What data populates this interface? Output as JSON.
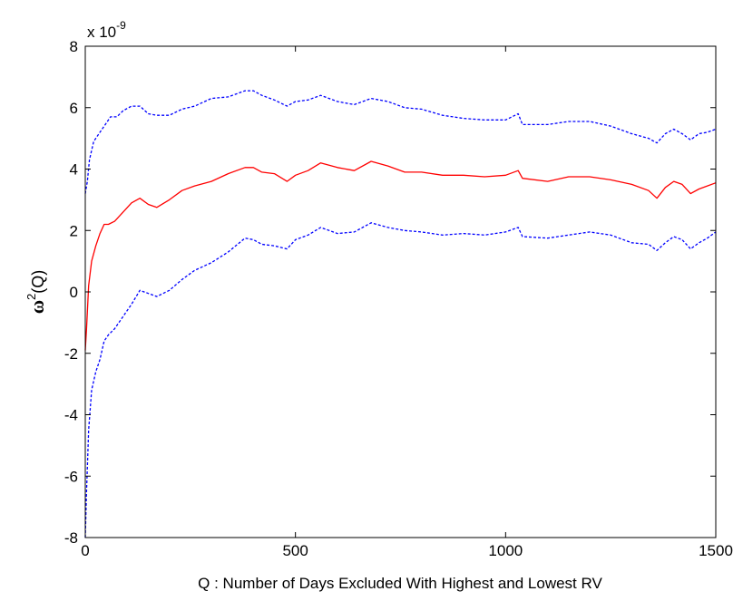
{
  "chart_data": {
    "type": "line",
    "title": "",
    "xlabel": "Q : Number of Days Excluded With Highest and Lowest RV",
    "ylabel": {
      "prefix": "ω",
      "sup": "2",
      "suffix": "(Q)"
    },
    "y_exponent": {
      "base": "x 10",
      "power": "-9"
    },
    "xlim": [
      0,
      1500
    ],
    "ylim": [
      -8,
      8
    ],
    "x_ticks": [
      0,
      500,
      1000,
      1500
    ],
    "x_tick_labels": [
      "0",
      "500",
      "1000",
      "1500"
    ],
    "y_ticks": [
      -8,
      -6,
      -4,
      -2,
      0,
      2,
      4,
      6,
      8
    ],
    "y_tick_labels": [
      "-8",
      "-6",
      "-4",
      "-2",
      "0",
      "2",
      "4",
      "6",
      "8"
    ],
    "grid": false,
    "legend": "none",
    "series": [
      {
        "color": "#0000ff",
        "style": "dashed",
        "x": [
          0,
          5,
          10,
          20,
          30,
          40,
          50,
          60,
          75,
          90,
          110,
          130,
          150,
          170,
          200,
          230,
          260,
          300,
          340,
          380,
          400,
          420,
          450,
          480,
          500,
          530,
          560,
          600,
          640,
          680,
          720,
          760,
          800,
          850,
          900,
          950,
          1000,
          1030,
          1040,
          1100,
          1150,
          1200,
          1250,
          1300,
          1340,
          1360,
          1380,
          1400,
          1420,
          1440,
          1460,
          1480,
          1500
        ],
        "values": [
          3.2,
          3.6,
          4.3,
          4.9,
          5.1,
          5.3,
          5.5,
          5.7,
          5.7,
          5.9,
          6.05,
          6.05,
          5.8,
          5.75,
          5.75,
          5.95,
          6.05,
          6.3,
          6.35,
          6.55,
          6.55,
          6.4,
          6.25,
          6.05,
          6.2,
          6.25,
          6.4,
          6.2,
          6.1,
          6.3,
          6.2,
          6.0,
          5.95,
          5.75,
          5.65,
          5.6,
          5.6,
          5.8,
          5.45,
          5.45,
          5.55,
          5.55,
          5.4,
          5.15,
          5.0,
          4.85,
          5.15,
          5.3,
          5.15,
          4.95,
          5.15,
          5.2,
          5.3
        ]
      },
      {
        "color": "#ff0000",
        "style": "solid",
        "x": [
          0,
          3,
          8,
          15,
          25,
          35,
          45,
          55,
          70,
          90,
          110,
          130,
          150,
          170,
          200,
          230,
          260,
          300,
          340,
          380,
          400,
          420,
          450,
          480,
          500,
          530,
          560,
          600,
          640,
          680,
          720,
          760,
          800,
          850,
          900,
          950,
          1000,
          1030,
          1040,
          1100,
          1150,
          1200,
          1250,
          1300,
          1340,
          1360,
          1380,
          1400,
          1420,
          1440,
          1460,
          1480,
          1500
        ],
        "values": [
          -1.9,
          -1.2,
          0.2,
          1.0,
          1.5,
          1.9,
          2.2,
          2.2,
          2.3,
          2.6,
          2.9,
          3.05,
          2.85,
          2.75,
          3.0,
          3.3,
          3.45,
          3.6,
          3.85,
          4.05,
          4.05,
          3.9,
          3.85,
          3.6,
          3.8,
          3.95,
          4.2,
          4.05,
          3.95,
          4.25,
          4.1,
          3.9,
          3.9,
          3.8,
          3.8,
          3.75,
          3.8,
          3.95,
          3.7,
          3.6,
          3.75,
          3.75,
          3.65,
          3.5,
          3.3,
          3.05,
          3.4,
          3.6,
          3.5,
          3.2,
          3.35,
          3.45,
          3.55
        ]
      },
      {
        "color": "#0000ff",
        "style": "dashed",
        "x": [
          0,
          3,
          8,
          15,
          25,
          35,
          45,
          55,
          70,
          90,
          110,
          130,
          150,
          170,
          200,
          230,
          260,
          300,
          340,
          380,
          400,
          420,
          450,
          480,
          500,
          530,
          560,
          600,
          640,
          680,
          720,
          760,
          800,
          850,
          900,
          950,
          1000,
          1030,
          1040,
          1100,
          1150,
          1200,
          1250,
          1300,
          1340,
          1360,
          1380,
          1400,
          1420,
          1440,
          1460,
          1480,
          1500
        ],
        "values": [
          -8.0,
          -6.5,
          -4.5,
          -3.2,
          -2.6,
          -2.2,
          -1.6,
          -1.4,
          -1.2,
          -0.8,
          -0.4,
          0.05,
          -0.05,
          -0.15,
          0.05,
          0.4,
          0.7,
          0.95,
          1.3,
          1.75,
          1.7,
          1.55,
          1.5,
          1.4,
          1.7,
          1.85,
          2.1,
          1.9,
          1.95,
          2.25,
          2.1,
          2.0,
          1.95,
          1.85,
          1.9,
          1.85,
          1.95,
          2.1,
          1.8,
          1.75,
          1.85,
          1.95,
          1.85,
          1.6,
          1.55,
          1.35,
          1.6,
          1.8,
          1.7,
          1.4,
          1.6,
          1.75,
          1.95
        ]
      }
    ]
  }
}
